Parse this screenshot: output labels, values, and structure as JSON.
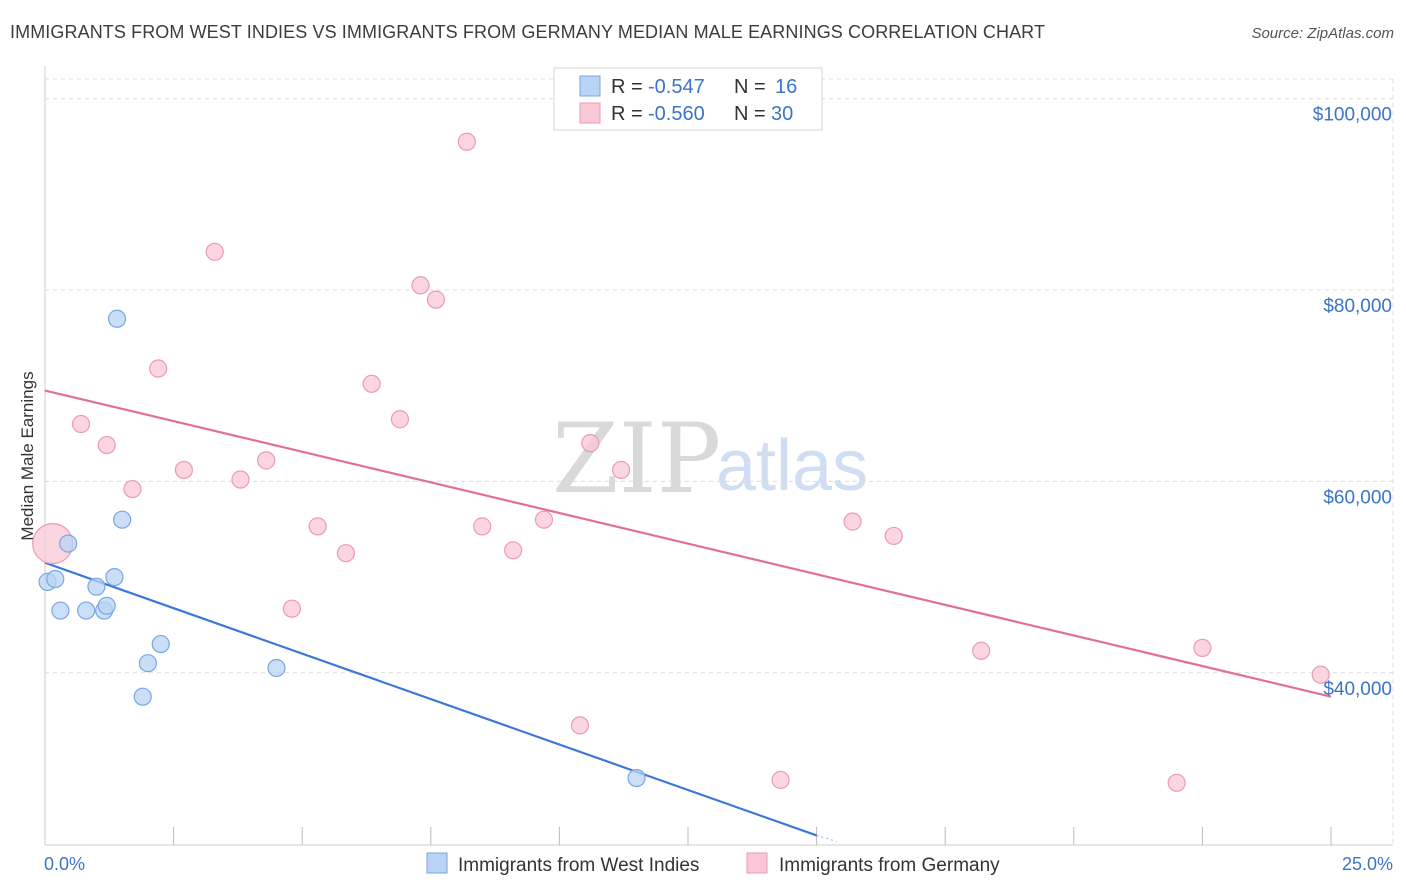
{
  "header": {
    "title": "IMMIGRANTS FROM WEST INDIES VS IMMIGRANTS FROM GERMANY MEDIAN MALE EARNINGS CORRELATION CHART",
    "source": "Source: ZipAtlas.com"
  },
  "watermark": {
    "zip": "ZIP",
    "atlas": "atlas"
  },
  "colors": {
    "blue_fill": "#b8d3f5",
    "blue_stroke": "#7aa6e0",
    "blue_line": "#3b78d8",
    "pink_fill": "#f9c8d6",
    "pink_stroke": "#ec9ab4",
    "pink_line": "#e07097",
    "axis_label": "#3b74c8",
    "grid": "#dcdcdc"
  },
  "legend": {
    "rows": [
      {
        "r_label": "R =",
        "r_value": "-0.547",
        "n_label": "N =",
        "n_value": "16"
      },
      {
        "r_label": "R =",
        "r_value": "-0.560",
        "n_label": "N =",
        "n_value": "30"
      }
    ]
  },
  "chart_data": {
    "type": "scatter",
    "title": "IMMIGRANTS FROM WEST INDIES VS IMMIGRANTS FROM GERMANY MEDIAN MALE EARNINGS CORRELATION CHART",
    "xlabel": "",
    "ylabel": "Median Male Earnings",
    "xlim": [
      0,
      25
    ],
    "ylim": [
      22000,
      103000
    ],
    "x_tick_labels": [
      {
        "value": 0,
        "label": "0.0%"
      },
      {
        "value": 25,
        "label": "25.0%"
      }
    ],
    "y_ticks": [
      {
        "value": 40000,
        "label": "$40,000"
      },
      {
        "value": 60000,
        "label": "$60,000"
      },
      {
        "value": 80000,
        "label": "$80,000"
      },
      {
        "value": 100000,
        "label": "$100,000"
      }
    ],
    "grid": true,
    "series": [
      {
        "name": "Immigrants from West Indies",
        "color": "blue",
        "points": [
          {
            "x": 0.05,
            "y": 49500
          },
          {
            "x": 0.2,
            "y": 49800
          },
          {
            "x": 0.45,
            "y": 53500
          },
          {
            "x": 0.3,
            "y": 46500
          },
          {
            "x": 1.15,
            "y": 46500
          },
          {
            "x": 1.2,
            "y": 47000
          },
          {
            "x": 0.8,
            "y": 46500
          },
          {
            "x": 1.0,
            "y": 49000
          },
          {
            "x": 1.35,
            "y": 50000
          },
          {
            "x": 1.4,
            "y": 77000
          },
          {
            "x": 1.5,
            "y": 56000
          },
          {
            "x": 1.9,
            "y": 37500
          },
          {
            "x": 2.0,
            "y": 41000
          },
          {
            "x": 2.25,
            "y": 43000
          },
          {
            "x": 4.5,
            "y": 40500
          },
          {
            "x": 11.5,
            "y": 29000
          }
        ],
        "trend": {
          "x1": 0,
          "y1": 51500,
          "x2": 15.0,
          "y2": 23000
        }
      },
      {
        "name": "Immigrants from Germany",
        "color": "pink",
        "points": [
          {
            "x": 0.15,
            "y": 53500,
            "large": true
          },
          {
            "x": 0.7,
            "y": 66000
          },
          {
            "x": 1.2,
            "y": 63800
          },
          {
            "x": 1.7,
            "y": 59200
          },
          {
            "x": 2.2,
            "y": 71800
          },
          {
            "x": 2.7,
            "y": 61200
          },
          {
            "x": 3.3,
            "y": 84000
          },
          {
            "x": 3.8,
            "y": 60200
          },
          {
            "x": 4.3,
            "y": 62200
          },
          {
            "x": 4.8,
            "y": 46700
          },
          {
            "x": 5.3,
            "y": 55300
          },
          {
            "x": 5.85,
            "y": 52500
          },
          {
            "x": 6.35,
            "y": 70200
          },
          {
            "x": 6.9,
            "y": 66500
          },
          {
            "x": 7.3,
            "y": 80500
          },
          {
            "x": 7.6,
            "y": 79000
          },
          {
            "x": 8.2,
            "y": 95500
          },
          {
            "x": 8.5,
            "y": 55300
          },
          {
            "x": 9.1,
            "y": 52800
          },
          {
            "x": 9.7,
            "y": 56000
          },
          {
            "x": 10.4,
            "y": 34500
          },
          {
            "x": 10.6,
            "y": 64000
          },
          {
            "x": 11.2,
            "y": 61200
          },
          {
            "x": 14.3,
            "y": 28800
          },
          {
            "x": 15.7,
            "y": 55800
          },
          {
            "x": 16.5,
            "y": 54300
          },
          {
            "x": 18.2,
            "y": 42300
          },
          {
            "x": 22.0,
            "y": 28500
          },
          {
            "x": 22.5,
            "y": 42600
          },
          {
            "x": 24.8,
            "y": 39800
          }
        ],
        "trend": {
          "x1": 0,
          "y1": 69500,
          "x2": 25,
          "y2": 37500
        }
      }
    ]
  },
  "bottom_legend": {
    "items": [
      {
        "label": "Immigrants from West Indies"
      },
      {
        "label": "Immigrants from Germany"
      }
    ]
  }
}
